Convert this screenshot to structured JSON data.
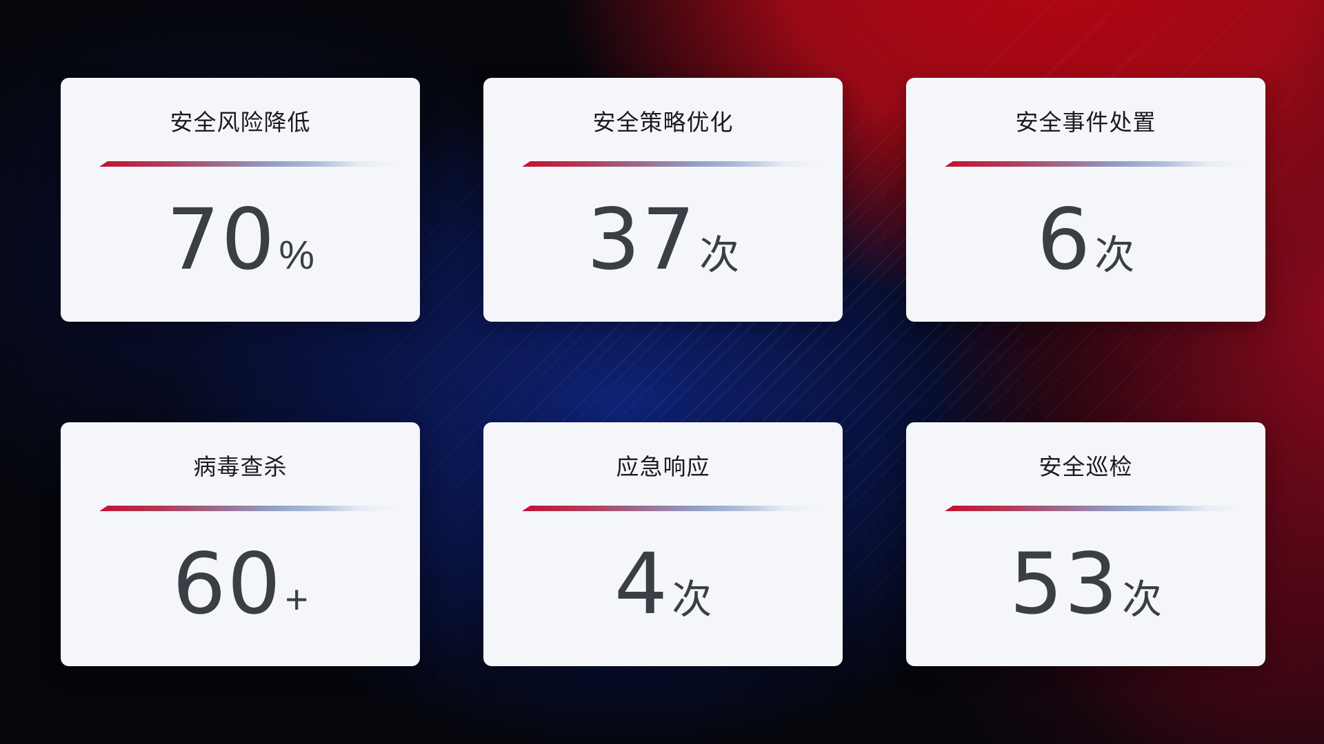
{
  "cards": [
    {
      "title": "安全风险降低",
      "value": "70",
      "unit": "%"
    },
    {
      "title": "安全策略优化",
      "value": "37",
      "unit": "次"
    },
    {
      "title": "安全事件处置",
      "value": "6",
      "unit": "次"
    },
    {
      "title": "病毒查杀",
      "value": "60",
      "unit": "+"
    },
    {
      "title": "应急响应",
      "value": "4",
      "unit": "次"
    },
    {
      "title": "安全巡检",
      "value": "53",
      "unit": "次"
    }
  ],
  "colors": {
    "card_background": "#f5f6fa",
    "title_text": "#1a1b1e",
    "value_text": "#3b3e45",
    "divider_red": "#c41132",
    "divider_blue": "#96a7cd",
    "background_center_blue": "#0f2478",
    "background_top_right_red": "#b3040f",
    "background_dark": "#05060c"
  }
}
